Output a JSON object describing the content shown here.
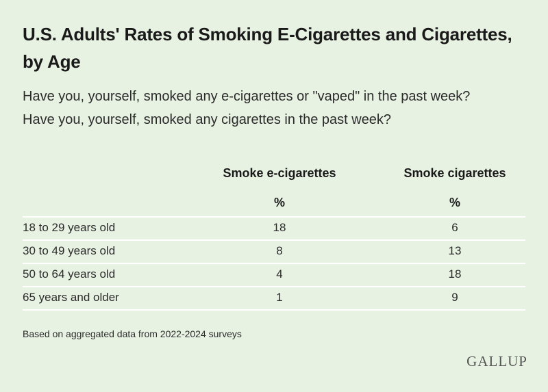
{
  "title": "U.S. Adults' Rates of Smoking E-Cigarettes and Cigarettes, by Age",
  "questions": [
    "Have you, yourself, smoked any e-cigarettes or \"vaped\" in the past week?",
    "Have you, yourself, smoked any cigarettes in the past week?"
  ],
  "columns": [
    {
      "header": "Smoke e-cigarettes",
      "unit": "%"
    },
    {
      "header": "Smoke cigarettes",
      "unit": "%"
    }
  ],
  "rows": [
    {
      "label": "18 to 29 years old",
      "values": [
        "18",
        "6"
      ]
    },
    {
      "label": "30 to 49 years old",
      "values": [
        "8",
        "13"
      ]
    },
    {
      "label": "50 to 64 years old",
      "values": [
        "4",
        "18"
      ]
    },
    {
      "label": "65 years and older",
      "values": [
        "1",
        "9"
      ]
    }
  ],
  "footnote": "Based on aggregated data from 2022-2024 surveys",
  "logo": "GALLUP",
  "chart_data": {
    "type": "table",
    "title": "U.S. Adults' Rates of Smoking E-Cigarettes and Cigarettes, by Age",
    "categories": [
      "18 to 29 years old",
      "30 to 49 years old",
      "50 to 64 years old",
      "65 years and older"
    ],
    "series": [
      {
        "name": "Smoke e-cigarettes",
        "values": [
          18,
          8,
          4,
          1
        ]
      },
      {
        "name": "Smoke cigarettes",
        "values": [
          6,
          13,
          18,
          9
        ]
      }
    ],
    "unit": "%"
  },
  "colors": {
    "background": "#e8f2e3",
    "rule": "#ffffff",
    "text": "#1d1d1d"
  }
}
